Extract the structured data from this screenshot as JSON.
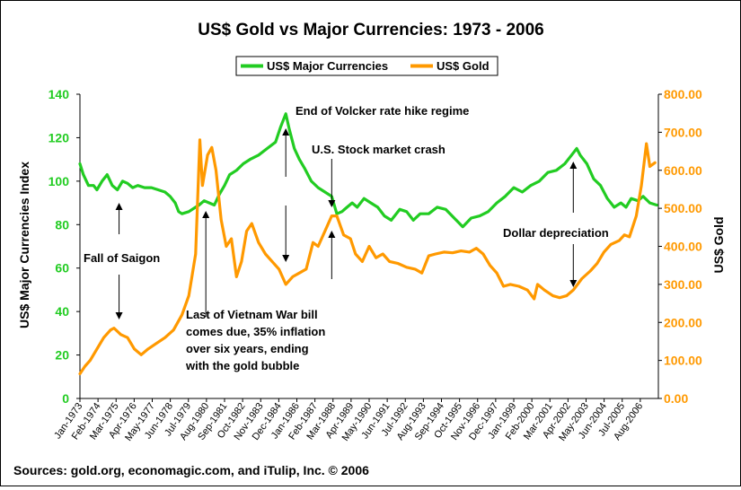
{
  "chart_data": {
    "type": "line",
    "title": "US$ Gold vs Major Currencies: 1973 - 2006",
    "ylabel": "US$ Major Currencies Index",
    "y2label": "US$ Gold",
    "ylim": [
      0,
      140
    ],
    "y2lim": [
      0,
      800
    ],
    "yticks": [
      "0",
      "20",
      "40",
      "60",
      "80",
      "100",
      "120",
      "140"
    ],
    "y2ticks": [
      "0.00",
      "100.00",
      "200.00",
      "300.00",
      "400.00",
      "500.00",
      "600.00",
      "700.00",
      "800.00"
    ],
    "xlim": [
      1973.0,
      2007.0
    ],
    "xticks": [
      "Jan-1973",
      "Feb-1974",
      "Mar-1975",
      "Apr-1976",
      "May-1977",
      "Jun-1978",
      "Jul-1979",
      "Aug-1980",
      "Sep-1981",
      "Oct-1982",
      "Nov-1983",
      "Dec-1984",
      "Jan-1986",
      "Feb-1987",
      "Mar-1988",
      "Apr-1989",
      "May-1990",
      "Jun-1991",
      "Jul-1992",
      "Aug-1993",
      "Sep-1994",
      "Oct-1995",
      "Nov-1996",
      "Dec-1997",
      "Jan-1999",
      "Feb-2000",
      "Mar-2001",
      "Apr-2002",
      "May-2003",
      "Jun-2004",
      "Jul-2005",
      "Aug-2006"
    ],
    "grid": false,
    "legend_position": "top",
    "colors": {
      "currencies": "#22cc22",
      "gold": "#ff9900",
      "left_axis": "#22cc22",
      "right_axis": "#ff9900"
    },
    "series": [
      {
        "name": "US$ Major Currencies",
        "axis": "left",
        "points": [
          [
            1973.0,
            108
          ],
          [
            1973.2,
            103
          ],
          [
            1973.5,
            98
          ],
          [
            1973.8,
            98
          ],
          [
            1974.0,
            96
          ],
          [
            1974.3,
            100
          ],
          [
            1974.6,
            103
          ],
          [
            1974.9,
            98
          ],
          [
            1975.2,
            96
          ],
          [
            1975.5,
            100
          ],
          [
            1975.8,
            99
          ],
          [
            1976.1,
            97
          ],
          [
            1976.4,
            98
          ],
          [
            1976.8,
            97
          ],
          [
            1977.2,
            97
          ],
          [
            1977.6,
            96
          ],
          [
            1978.0,
            95
          ],
          [
            1978.3,
            93
          ],
          [
            1978.6,
            90
          ],
          [
            1978.8,
            86
          ],
          [
            1979.0,
            85
          ],
          [
            1979.4,
            86
          ],
          [
            1979.8,
            88
          ],
          [
            1980.0,
            89
          ],
          [
            1980.3,
            91
          ],
          [
            1980.6,
            90
          ],
          [
            1980.9,
            89
          ],
          [
            1981.2,
            94
          ],
          [
            1981.5,
            98
          ],
          [
            1981.8,
            103
          ],
          [
            1982.2,
            105
          ],
          [
            1982.6,
            108
          ],
          [
            1983.0,
            110
          ],
          [
            1983.5,
            112
          ],
          [
            1984.0,
            115
          ],
          [
            1984.5,
            118
          ],
          [
            1984.8,
            125
          ],
          [
            1985.1,
            131
          ],
          [
            1985.3,
            124
          ],
          [
            1985.6,
            115
          ],
          [
            1985.9,
            110
          ],
          [
            1986.2,
            106
          ],
          [
            1986.6,
            100
          ],
          [
            1987.0,
            97
          ],
          [
            1987.4,
            95
          ],
          [
            1987.8,
            93
          ],
          [
            1988.1,
            85
          ],
          [
            1988.4,
            86
          ],
          [
            1988.7,
            88
          ],
          [
            1989.0,
            90
          ],
          [
            1989.3,
            88
          ],
          [
            1989.7,
            92
          ],
          [
            1990.1,
            90
          ],
          [
            1990.5,
            88
          ],
          [
            1990.9,
            84
          ],
          [
            1991.3,
            82
          ],
          [
            1991.8,
            87
          ],
          [
            1992.2,
            86
          ],
          [
            1992.6,
            82
          ],
          [
            1993.0,
            85
          ],
          [
            1993.5,
            85
          ],
          [
            1994.0,
            88
          ],
          [
            1994.5,
            87
          ],
          [
            1995.0,
            83
          ],
          [
            1995.5,
            79
          ],
          [
            1996.0,
            83
          ],
          [
            1996.5,
            84
          ],
          [
            1997.0,
            86
          ],
          [
            1997.5,
            90
          ],
          [
            1998.0,
            93
          ],
          [
            1998.5,
            97
          ],
          [
            1999.0,
            95
          ],
          [
            1999.5,
            98
          ],
          [
            2000.0,
            100
          ],
          [
            2000.5,
            104
          ],
          [
            2001.0,
            105
          ],
          [
            2001.5,
            108
          ],
          [
            2001.9,
            112
          ],
          [
            2002.2,
            115
          ],
          [
            2002.4,
            112
          ],
          [
            2002.8,
            108
          ],
          [
            2003.2,
            101
          ],
          [
            2003.6,
            98
          ],
          [
            2004.0,
            92
          ],
          [
            2004.4,
            88
          ],
          [
            2004.8,
            90
          ],
          [
            2005.1,
            88
          ],
          [
            2005.4,
            92
          ],
          [
            2005.8,
            91
          ],
          [
            2006.1,
            93
          ],
          [
            2006.5,
            90
          ],
          [
            2006.9,
            89
          ]
        ]
      },
      {
        "name": "US$ Gold",
        "axis": "right",
        "points": [
          [
            1973.0,
            65
          ],
          [
            1973.3,
            85
          ],
          [
            1973.6,
            100
          ],
          [
            1974.0,
            130
          ],
          [
            1974.4,
            160
          ],
          [
            1974.8,
            180
          ],
          [
            1975.0,
            185
          ],
          [
            1975.4,
            168
          ],
          [
            1975.8,
            160
          ],
          [
            1976.2,
            130
          ],
          [
            1976.6,
            115
          ],
          [
            1977.0,
            130
          ],
          [
            1977.5,
            145
          ],
          [
            1978.0,
            160
          ],
          [
            1978.5,
            180
          ],
          [
            1979.0,
            220
          ],
          [
            1979.4,
            270
          ],
          [
            1979.8,
            380
          ],
          [
            1980.05,
            680
          ],
          [
            1980.2,
            560
          ],
          [
            1980.5,
            640
          ],
          [
            1980.75,
            660
          ],
          [
            1981.0,
            600
          ],
          [
            1981.3,
            470
          ],
          [
            1981.6,
            400
          ],
          [
            1981.9,
            420
          ],
          [
            1982.2,
            320
          ],
          [
            1982.5,
            360
          ],
          [
            1982.8,
            440
          ],
          [
            1983.1,
            460
          ],
          [
            1983.5,
            410
          ],
          [
            1983.9,
            380
          ],
          [
            1984.3,
            360
          ],
          [
            1984.7,
            340
          ],
          [
            1985.1,
            300
          ],
          [
            1985.5,
            320
          ],
          [
            1985.9,
            330
          ],
          [
            1986.3,
            340
          ],
          [
            1986.7,
            410
          ],
          [
            1987.0,
            400
          ],
          [
            1987.4,
            440
          ],
          [
            1987.8,
            480
          ],
          [
            1988.1,
            480
          ],
          [
            1988.5,
            430
          ],
          [
            1988.9,
            420
          ],
          [
            1989.2,
            380
          ],
          [
            1989.6,
            360
          ],
          [
            1990.0,
            400
          ],
          [
            1990.4,
            370
          ],
          [
            1990.8,
            380
          ],
          [
            1991.2,
            360
          ],
          [
            1991.7,
            355
          ],
          [
            1992.2,
            345
          ],
          [
            1992.7,
            340
          ],
          [
            1993.1,
            330
          ],
          [
            1993.5,
            375
          ],
          [
            1993.9,
            380
          ],
          [
            1994.4,
            385
          ],
          [
            1994.9,
            383
          ],
          [
            1995.4,
            388
          ],
          [
            1995.9,
            385
          ],
          [
            1996.3,
            395
          ],
          [
            1996.7,
            380
          ],
          [
            1997.1,
            350
          ],
          [
            1997.5,
            330
          ],
          [
            1997.9,
            295
          ],
          [
            1998.3,
            300
          ],
          [
            1998.8,
            295
          ],
          [
            1999.3,
            285
          ],
          [
            1999.7,
            262
          ],
          [
            1999.9,
            300
          ],
          [
            2000.3,
            285
          ],
          [
            2000.8,
            270
          ],
          [
            2001.2,
            265
          ],
          [
            2001.6,
            270
          ],
          [
            2002.0,
            285
          ],
          [
            2002.5,
            315
          ],
          [
            2003.0,
            335
          ],
          [
            2003.4,
            355
          ],
          [
            2003.8,
            385
          ],
          [
            2004.2,
            405
          ],
          [
            2004.7,
            415
          ],
          [
            2005.0,
            430
          ],
          [
            2005.3,
            425
          ],
          [
            2005.7,
            480
          ],
          [
            2006.0,
            560
          ],
          [
            2006.3,
            670
          ],
          [
            2006.5,
            610
          ],
          [
            2006.8,
            620
          ]
        ]
      }
    ],
    "annotations": [
      {
        "text": "End of Volcker rate hike regime",
        "x": 1985.1
      },
      {
        "text": "U.S. Stock market crash",
        "x": 1987.8
      },
      {
        "text": "Fall of Saigon",
        "x": 1975.3
      },
      {
        "text": "Dollar depreciation",
        "x": 2002.0
      },
      {
        "text": "Last of Vietnam War bill",
        "x": 1980.4
      },
      {
        "text": "comes due, 35% inflation",
        "x": 1980.4
      },
      {
        "text": "over six years, ending",
        "x": 1980.4
      },
      {
        "text": "with the gold bubble",
        "x": 1980.4
      }
    ]
  },
  "footer": {
    "sources": "Sources: gold.org, economagic.com, and iTulip, Inc. © 2006"
  }
}
